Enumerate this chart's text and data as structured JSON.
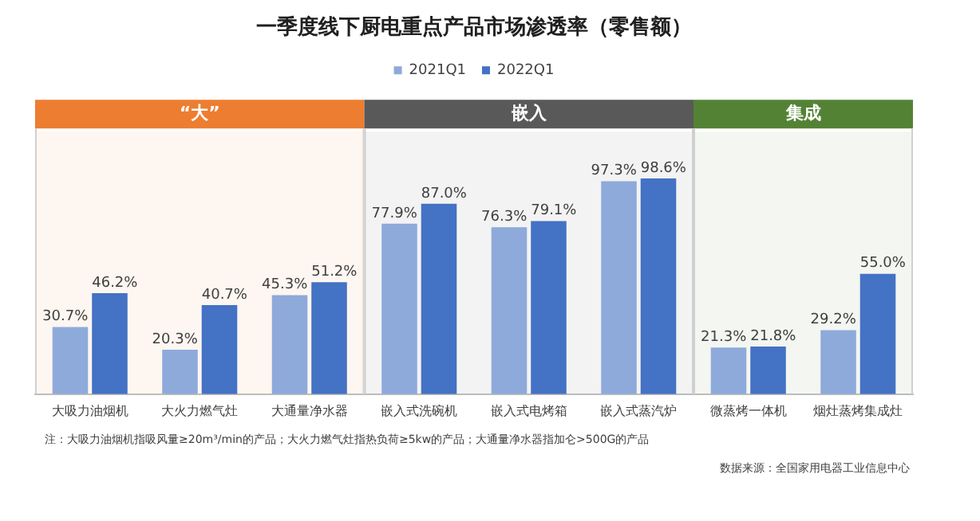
{
  "chart_data": {
    "type": "bar",
    "title": "一季度线下厨电重点产品市场渗透率（零售额）",
    "categories": [
      "大吸力油烟机",
      "大火力燃气灶",
      "大通量净水器",
      "嵌入式洗碗机",
      "嵌入式电烤箱",
      "嵌入式蒸汽炉",
      "微蒸烤一体机",
      "烟灶蒸烤集成灶"
    ],
    "series": [
      {
        "name": "2021Q1",
        "color": "#8eaadb",
        "values": [
          30.7,
          20.3,
          45.3,
          77.9,
          76.3,
          97.3,
          21.3,
          29.2
        ],
        "value_labels": [
          "30.7%",
          "20.3%",
          "45.3%",
          "77.9%",
          "76.3%",
          "97.3%",
          "21.3%",
          "29.2%"
        ]
      },
      {
        "name": "2022Q1",
        "color": "#4472c4",
        "values": [
          46.2,
          40.7,
          51.2,
          87.0,
          79.1,
          98.6,
          21.8,
          55.0
        ],
        "value_labels": [
          "46.2%",
          "40.7%",
          "51.2%",
          "87.0%",
          "79.1%",
          "98.6%",
          "21.8%",
          "55.0%"
        ]
      }
    ],
    "bands": [
      {
        "axis": "x",
        "from": "大吸力油烟机",
        "to": "大通量净水器",
        "label": "“大”",
        "color": "#ed7d31"
      },
      {
        "axis": "x",
        "from": "嵌入式洗碗机",
        "to": "嵌入式蒸汽炉",
        "label": "嵌入",
        "color": "#595959"
      },
      {
        "axis": "x",
        "from": "微蒸烤一体机",
        "to": "烟灶蒸烤集成灶",
        "label": "集成",
        "color": "#548235"
      }
    ],
    "annotations": [
      "注：大吸力油烟机指吸风量≥20m³/min的产品；大火力燃气灶指热负荷≥5kw的产品；大通量净水器指加仑>500G的产品",
      "数据来源：全国家用电器工业信息中心"
    ],
    "legend": "top",
    "grid": false
  }
}
